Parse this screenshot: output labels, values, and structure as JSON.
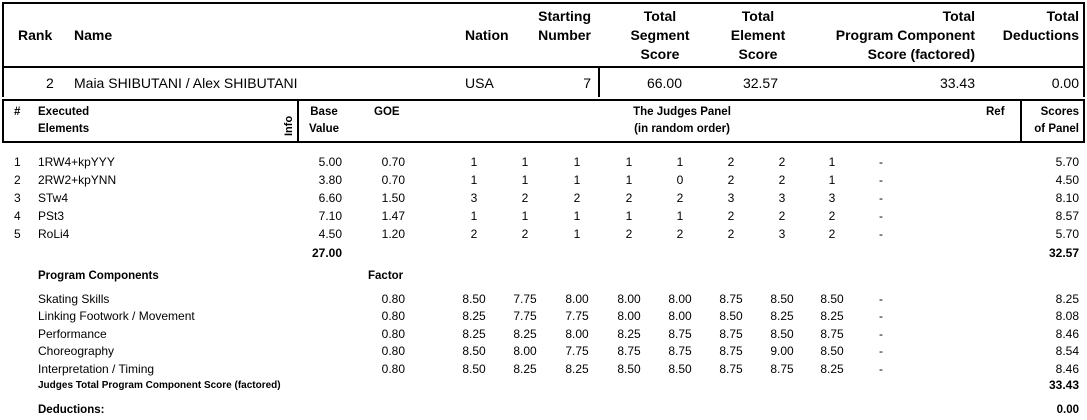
{
  "summary": {
    "headers": {
      "rank": "Rank",
      "name": "Name",
      "nation": "Nation",
      "starting_number": [
        "Starting",
        "Number"
      ],
      "total_segment_score": [
        "Total",
        "Segment",
        "Score"
      ],
      "total_element_score": [
        "Total",
        "Element",
        "Score"
      ],
      "total_program_component_score": [
        "Total",
        "Program Component",
        "Score (factored)"
      ],
      "total_deductions": [
        "Total",
        "Deductions"
      ]
    },
    "row": {
      "rank": "2",
      "name": "Maia SHIBUTANI / Alex SHIBUTANI",
      "nation": "USA",
      "starting_number": "7",
      "total_segment_score": "66.00",
      "total_element_score": "32.57",
      "total_program_component_score": "33.43",
      "total_deductions": "0.00"
    }
  },
  "detail_headers": {
    "num": "#",
    "executed_elements": [
      "Executed",
      "Elements"
    ],
    "info": "Info",
    "base_value": [
      "Base",
      "Value"
    ],
    "goe": "GOE",
    "judges_panel": [
      "The Judges Panel",
      "(in random order)"
    ],
    "ref": "Ref",
    "scores_of_panel": [
      "Scores",
      "of Panel"
    ]
  },
  "elements": [
    {
      "num": "1",
      "name": "1RW4+kpYYY",
      "base": "5.00",
      "goe": "0.70",
      "judges": [
        "1",
        "1",
        "1",
        "1",
        "1",
        "2",
        "2",
        "1"
      ],
      "ref": "-",
      "score": "5.70"
    },
    {
      "num": "2",
      "name": "2RW2+kpYNN",
      "base": "3.80",
      "goe": "0.70",
      "judges": [
        "1",
        "1",
        "1",
        "1",
        "0",
        "2",
        "2",
        "1"
      ],
      "ref": "-",
      "score": "4.50"
    },
    {
      "num": "3",
      "name": "STw4",
      "base": "6.60",
      "goe": "1.50",
      "judges": [
        "3",
        "2",
        "2",
        "2",
        "2",
        "3",
        "3",
        "3"
      ],
      "ref": "-",
      "score": "8.10"
    },
    {
      "num": "4",
      "name": "PSt3",
      "base": "7.10",
      "goe": "1.47",
      "judges": [
        "1",
        "1",
        "1",
        "1",
        "1",
        "2",
        "2",
        "2"
      ],
      "ref": "-",
      "score": "8.57"
    },
    {
      "num": "5",
      "name": "RoLi4",
      "base": "4.50",
      "goe": "1.20",
      "judges": [
        "2",
        "2",
        "1",
        "2",
        "2",
        "2",
        "3",
        "2"
      ],
      "ref": "-",
      "score": "5.70"
    }
  ],
  "elements_total": {
    "base": "27.00",
    "score": "32.57"
  },
  "program_components": {
    "heading": "Program Components",
    "factor_label": "Factor",
    "rows": [
      {
        "name": "Skating Skills",
        "factor": "0.80",
        "judges": [
          "8.50",
          "7.75",
          "8.00",
          "8.00",
          "8.00",
          "8.75",
          "8.50",
          "8.50"
        ],
        "ref": "-",
        "score": "8.25"
      },
      {
        "name": "Linking Footwork / Movement",
        "factor": "0.80",
        "judges": [
          "8.25",
          "7.75",
          "7.75",
          "8.00",
          "8.00",
          "8.50",
          "8.25",
          "8.25"
        ],
        "ref": "-",
        "score": "8.08"
      },
      {
        "name": "Performance",
        "factor": "0.80",
        "judges": [
          "8.25",
          "8.25",
          "8.00",
          "8.25",
          "8.75",
          "8.75",
          "8.50",
          "8.75"
        ],
        "ref": "-",
        "score": "8.46"
      },
      {
        "name": "Choreography",
        "factor": "0.80",
        "judges": [
          "8.50",
          "8.00",
          "7.75",
          "8.75",
          "8.75",
          "8.75",
          "9.00",
          "8.50"
        ],
        "ref": "-",
        "score": "8.54"
      },
      {
        "name": "Interpretation / Timing",
        "factor": "0.80",
        "judges": [
          "8.50",
          "8.25",
          "8.25",
          "8.50",
          "8.50",
          "8.75",
          "8.75",
          "8.25"
        ],
        "ref": "-",
        "score": "8.46"
      }
    ],
    "total_label": "Judges Total Program Component Score (factored)",
    "total_value": "33.43"
  },
  "deductions": {
    "label": "Deductions:",
    "value": "0.00"
  }
}
